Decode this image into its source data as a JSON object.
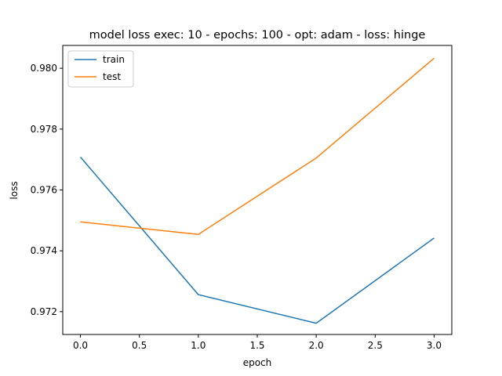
{
  "chart_data": {
    "type": "line",
    "title": "model loss exec: 10 - epochs: 100 - opt: adam - loss: hinge",
    "xlabel": "epoch",
    "ylabel": "loss",
    "x": [
      0,
      1,
      2,
      3
    ],
    "xlim": [
      -0.15,
      3.15
    ],
    "ylim": [
      0.97125,
      0.98075
    ],
    "xticks": [
      0.0,
      0.5,
      1.0,
      1.5,
      2.0,
      2.5,
      3.0
    ],
    "xtick_labels": [
      "0.0",
      "0.5",
      "1.0",
      "1.5",
      "2.0",
      "2.5",
      "3.0"
    ],
    "yticks": [
      0.972,
      0.974,
      0.976,
      0.978,
      0.98
    ],
    "ytick_labels": [
      "0.972",
      "0.974",
      "0.976",
      "0.978",
      "0.980"
    ],
    "grid": false,
    "legend_position": "top-left",
    "series": [
      {
        "name": "train",
        "color": "#1f77b4",
        "values": [
          0.97708,
          0.97256,
          0.97162,
          0.97442
        ]
      },
      {
        "name": "test",
        "color": "#ff7f0e",
        "values": [
          0.97495,
          0.97454,
          0.97705,
          0.98033
        ]
      }
    ]
  }
}
